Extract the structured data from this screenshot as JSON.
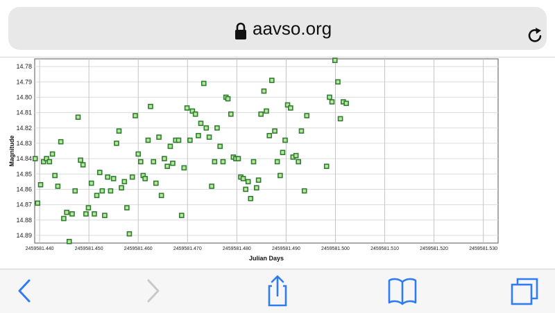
{
  "browser": {
    "url": "aavso.org",
    "icons": [
      "lock-icon",
      "reload-icon",
      "back-icon",
      "forward-icon",
      "share-icon",
      "bookmarks-icon",
      "tabs-icon"
    ],
    "accent": "#2f7bf5"
  },
  "chart_data": {
    "type": "scatter",
    "title": "",
    "xlabel": "Julian Days",
    "ylabel": "Magnitude",
    "xlim": [
      2459581.439,
      2459581.533
    ],
    "ylim": [
      14.775,
      14.895
    ],
    "y_inverted": true,
    "grid": true,
    "x_ticks": [
      "2459581.440",
      "2459581.450",
      "2459581.460",
      "2459581.470",
      "2459581.480",
      "2459581.490",
      "2459581.500",
      "2459581.510",
      "2459581.520",
      "2459581.530"
    ],
    "x_tick_values": [
      2459581.44,
      2459581.45,
      2459581.46,
      2459581.47,
      2459581.48,
      2459581.49,
      2459581.5,
      2459581.51,
      2459581.52,
      2459581.53
    ],
    "y_ticks": [
      "14.78",
      "14.79",
      "14.80",
      "14.81",
      "14.82",
      "14.83",
      "14.84",
      "14.85",
      "14.86",
      "14.87",
      "14.88",
      "14.89"
    ],
    "y_tick_values": [
      14.78,
      14.79,
      14.8,
      14.81,
      14.82,
      14.83,
      14.84,
      14.85,
      14.86,
      14.87,
      14.88,
      14.89
    ],
    "marker_color": "#2e7d32",
    "marker_fill": "#b9e69a",
    "series": [
      {
        "points": [
          [
            2459581.4391,
            14.84
          ],
          [
            2459581.4396,
            14.869
          ],
          [
            2459581.4402,
            14.857
          ],
          [
            2459581.4408,
            14.842
          ],
          [
            2459581.4414,
            14.84
          ],
          [
            2459581.442,
            14.842
          ],
          [
            2459581.4426,
            14.837
          ],
          [
            2459581.4431,
            14.851
          ],
          [
            2459581.4437,
            14.858
          ],
          [
            2459581.4443,
            14.829
          ],
          [
            2459581.4449,
            14.879
          ],
          [
            2459581.4455,
            14.875
          ],
          [
            2459581.446,
            14.894
          ],
          [
            2459581.4466,
            14.876
          ],
          [
            2459581.4472,
            14.861
          ],
          [
            2459581.4478,
            14.813
          ],
          [
            2459581.4483,
            14.841
          ],
          [
            2459581.4488,
            14.844
          ],
          [
            2459581.4494,
            14.876
          ],
          [
            2459581.4499,
            14.872
          ],
          [
            2459581.4505,
            14.856
          ],
          [
            2459581.4511,
            14.876
          ],
          [
            2459581.4516,
            14.864
          ],
          [
            2459581.4522,
            14.849
          ],
          [
            2459581.4527,
            14.861
          ],
          [
            2459581.4532,
            14.877
          ],
          [
            2459581.4538,
            14.852
          ],
          [
            2459581.4544,
            14.861
          ],
          [
            2459581.455,
            14.853
          ],
          [
            2459581.4556,
            14.83
          ],
          [
            2459581.4561,
            14.822
          ],
          [
            2459581.4566,
            14.859
          ],
          [
            2459581.4572,
            14.855
          ],
          [
            2459581.4577,
            14.872
          ],
          [
            2459581.4582,
            14.889
          ],
          [
            2459581.4588,
            14.852
          ],
          [
            2459581.4594,
            14.812
          ],
          [
            2459581.46,
            14.837
          ],
          [
            2459581.4605,
            14.842
          ],
          [
            2459581.461,
            14.851
          ],
          [
            2459581.4614,
            14.853
          ],
          [
            2459581.462,
            14.828
          ],
          [
            2459581.4625,
            14.806
          ],
          [
            2459581.4631,
            14.842
          ],
          [
            2459581.4636,
            14.856
          ],
          [
            2459581.4642,
            14.826
          ],
          [
            2459581.4647,
            14.864
          ],
          [
            2459581.4653,
            14.84
          ],
          [
            2459581.4659,
            14.845
          ],
          [
            2459581.4665,
            14.832
          ],
          [
            2459581.467,
            14.843
          ],
          [
            2459581.4676,
            14.828
          ],
          [
            2459581.4682,
            14.828
          ],
          [
            2459581.4688,
            14.877
          ],
          [
            2459581.4693,
            14.846
          ],
          [
            2459581.4699,
            14.807
          ],
          [
            2459581.4705,
            14.828
          ],
          [
            2459581.471,
            14.809
          ],
          [
            2459581.4716,
            14.811
          ],
          [
            2459581.4722,
            14.825
          ],
          [
            2459581.4727,
            14.817
          ],
          [
            2459581.4733,
            14.791
          ],
          [
            2459581.4738,
            14.82
          ],
          [
            2459581.4744,
            14.826
          ],
          [
            2459581.4749,
            14.858
          ],
          [
            2459581.4755,
            14.842
          ],
          [
            2459581.476,
            14.82
          ],
          [
            2459581.4766,
            14.832
          ],
          [
            2459581.4772,
            14.842
          ],
          [
            2459581.4778,
            14.8
          ],
          [
            2459581.4782,
            14.801
          ],
          [
            2459581.4788,
            14.811
          ],
          [
            2459581.4793,
            14.839
          ],
          [
            2459581.4798,
            14.84
          ],
          [
            2459581.4803,
            14.84
          ],
          [
            2459581.4808,
            14.852
          ],
          [
            2459581.4813,
            14.853
          ],
          [
            2459581.4818,
            14.86
          ],
          [
            2459581.4823,
            14.855
          ],
          [
            2459581.4828,
            14.866
          ],
          [
            2459581.4834,
            14.842
          ],
          [
            2459581.484,
            14.859
          ],
          [
            2459581.4844,
            14.854
          ],
          [
            2459581.4849,
            14.811
          ],
          [
            2459581.4855,
            14.796
          ],
          [
            2459581.486,
            14.809
          ],
          [
            2459581.4866,
            14.825
          ],
          [
            2459581.4871,
            14.789
          ],
          [
            2459581.4877,
            14.822
          ],
          [
            2459581.4882,
            14.842
          ],
          [
            2459581.4888,
            14.851
          ],
          [
            2459581.4893,
            14.836
          ],
          [
            2459581.4898,
            14.828
          ],
          [
            2459581.4903,
            14.805
          ],
          [
            2459581.4909,
            14.807
          ],
          [
            2459581.4914,
            14.839
          ],
          [
            2459581.492,
            14.838
          ],
          [
            2459581.4925,
            14.842
          ],
          [
            2459581.4931,
            14.822
          ],
          [
            2459581.4937,
            14.861
          ],
          [
            2459581.4942,
            14.812
          ],
          [
            2459581.4982,
            14.845
          ],
          [
            2459581.4988,
            14.8
          ],
          [
            2459581.4993,
            14.803
          ],
          [
            2459581.4999,
            14.776
          ],
          [
            2459581.5005,
            14.79
          ],
          [
            2459581.501,
            14.814
          ],
          [
            2459581.5016,
            14.803
          ],
          [
            2459581.5022,
            14.804
          ]
        ]
      }
    ]
  },
  "layout_note": ""
}
